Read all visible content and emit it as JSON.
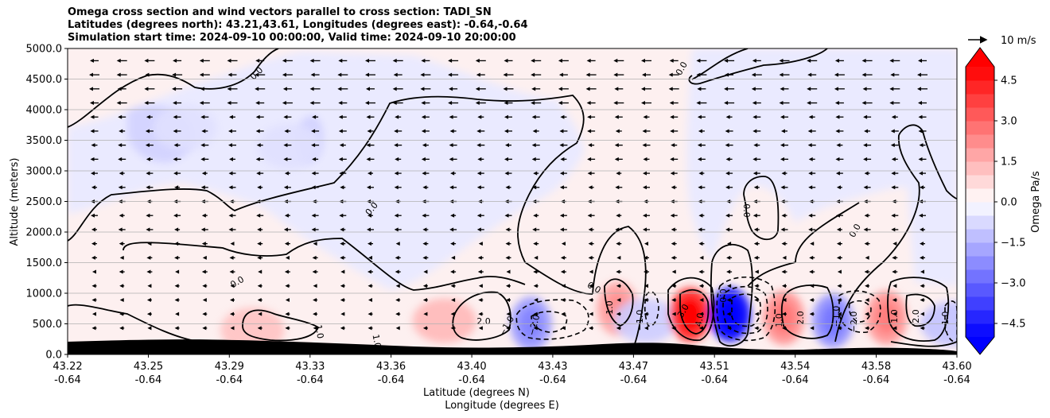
{
  "chart_data": {
    "type": "heatmap",
    "title": [
      "Omega cross section and wind vectors parallel to cross section: TADI_SN",
      "Latitudes (degrees north): 43.21,43.61, Longitudes (degrees east): -0.64,-0.64",
      "Simulation start time: 2024-09-10 00:00:00, Valid time: 2024-09-10 20:00:00"
    ],
    "ylabel": "Altitude (meters)",
    "xlabel_line1": "Latitude (degrees N)",
    "xlabel_line2": "Longitude (degrees E)",
    "ylim": [
      0,
      5000
    ],
    "yticks": [
      "0.0",
      "500.0",
      "1000.0",
      "1500.0",
      "2000.0",
      "2500.0",
      "3000.0",
      "3500.0",
      "4000.0",
      "4500.0",
      "5000.0"
    ],
    "ytick_values": [
      0,
      500,
      1000,
      1500,
      2000,
      2500,
      3000,
      3500,
      4000,
      4500,
      5000
    ],
    "xlim": [
      43.22,
      43.6
    ],
    "xticks_lat": [
      "43.22",
      "43.25",
      "43.29",
      "43.33",
      "43.36",
      "43.40",
      "43.43",
      "43.47",
      "43.51",
      "43.54",
      "43.58",
      "43.60"
    ],
    "xticks_lon": [
      "-0.64",
      "-0.64",
      "-0.64",
      "-0.64",
      "-0.64",
      "-0.64",
      "-0.64",
      "-0.64",
      "-0.64",
      "-0.64",
      "-0.64",
      "-0.64"
    ],
    "xtick_values": [
      43.22,
      43.2545,
      43.2891,
      43.3236,
      43.3582,
      43.3927,
      43.4273,
      43.4618,
      43.4964,
      43.5309,
      43.5655,
      43.6
    ],
    "grid": "horizontal",
    "colorbar": {
      "label": "Omega Pa/s",
      "range": [
        -5,
        5
      ],
      "extend": "both",
      "tick_labels": [
        "4.5",
        "3.0",
        "1.5",
        "0.0",
        "−1.5",
        "−3.0",
        "−4.5"
      ],
      "tick_values": [
        4.5,
        3.0,
        1.5,
        0.0,
        -1.5,
        -3.0,
        -4.5
      ],
      "levels": 20
    },
    "quiver_key": "10 m/s",
    "omega_features": [
      {
        "lat": 43.299,
        "alt": 400,
        "value": 1.2
      },
      {
        "lat": 43.381,
        "alt": 550,
        "value": 1.4
      },
      {
        "lat": 43.418,
        "alt": 500,
        "value": -2.0
      },
      {
        "lat": 43.455,
        "alt": 750,
        "value": 1.8
      },
      {
        "lat": 43.467,
        "alt": 550,
        "value": -1.0
      },
      {
        "lat": 43.486,
        "alt": 650,
        "value": 4.2
      },
      {
        "lat": 43.503,
        "alt": 650,
        "value": -5.2
      },
      {
        "lat": 43.526,
        "alt": 600,
        "value": 2.2
      },
      {
        "lat": 43.547,
        "alt": 550,
        "value": -2.2
      },
      {
        "lat": 43.57,
        "alt": 600,
        "value": 2.1
      },
      {
        "lat": 43.598,
        "alt": 500,
        "value": -1.2
      },
      {
        "lat": 43.27,
        "alt": 3700,
        "value": -0.6
      },
      {
        "lat": 43.315,
        "alt": 3400,
        "value": -0.6
      }
    ],
    "contour_labels": [
      "0.0",
      "0.0",
      "0.0",
      "0.0",
      "0.0",
      "0.0",
      "0.0",
      "1.0",
      "1.0",
      "1.0",
      "1.0",
      "1.0",
      "2.0",
      "2.0",
      "2.0",
      "3.0",
      "4.0",
      "−1.0",
      "−1.0",
      "−1.0",
      "−2.0",
      "−2.0",
      "−1.0",
      "0.0"
    ]
  },
  "colors": {
    "positive": "#ff0000",
    "negative": "#0000ff",
    "terrain": "#000000"
  }
}
